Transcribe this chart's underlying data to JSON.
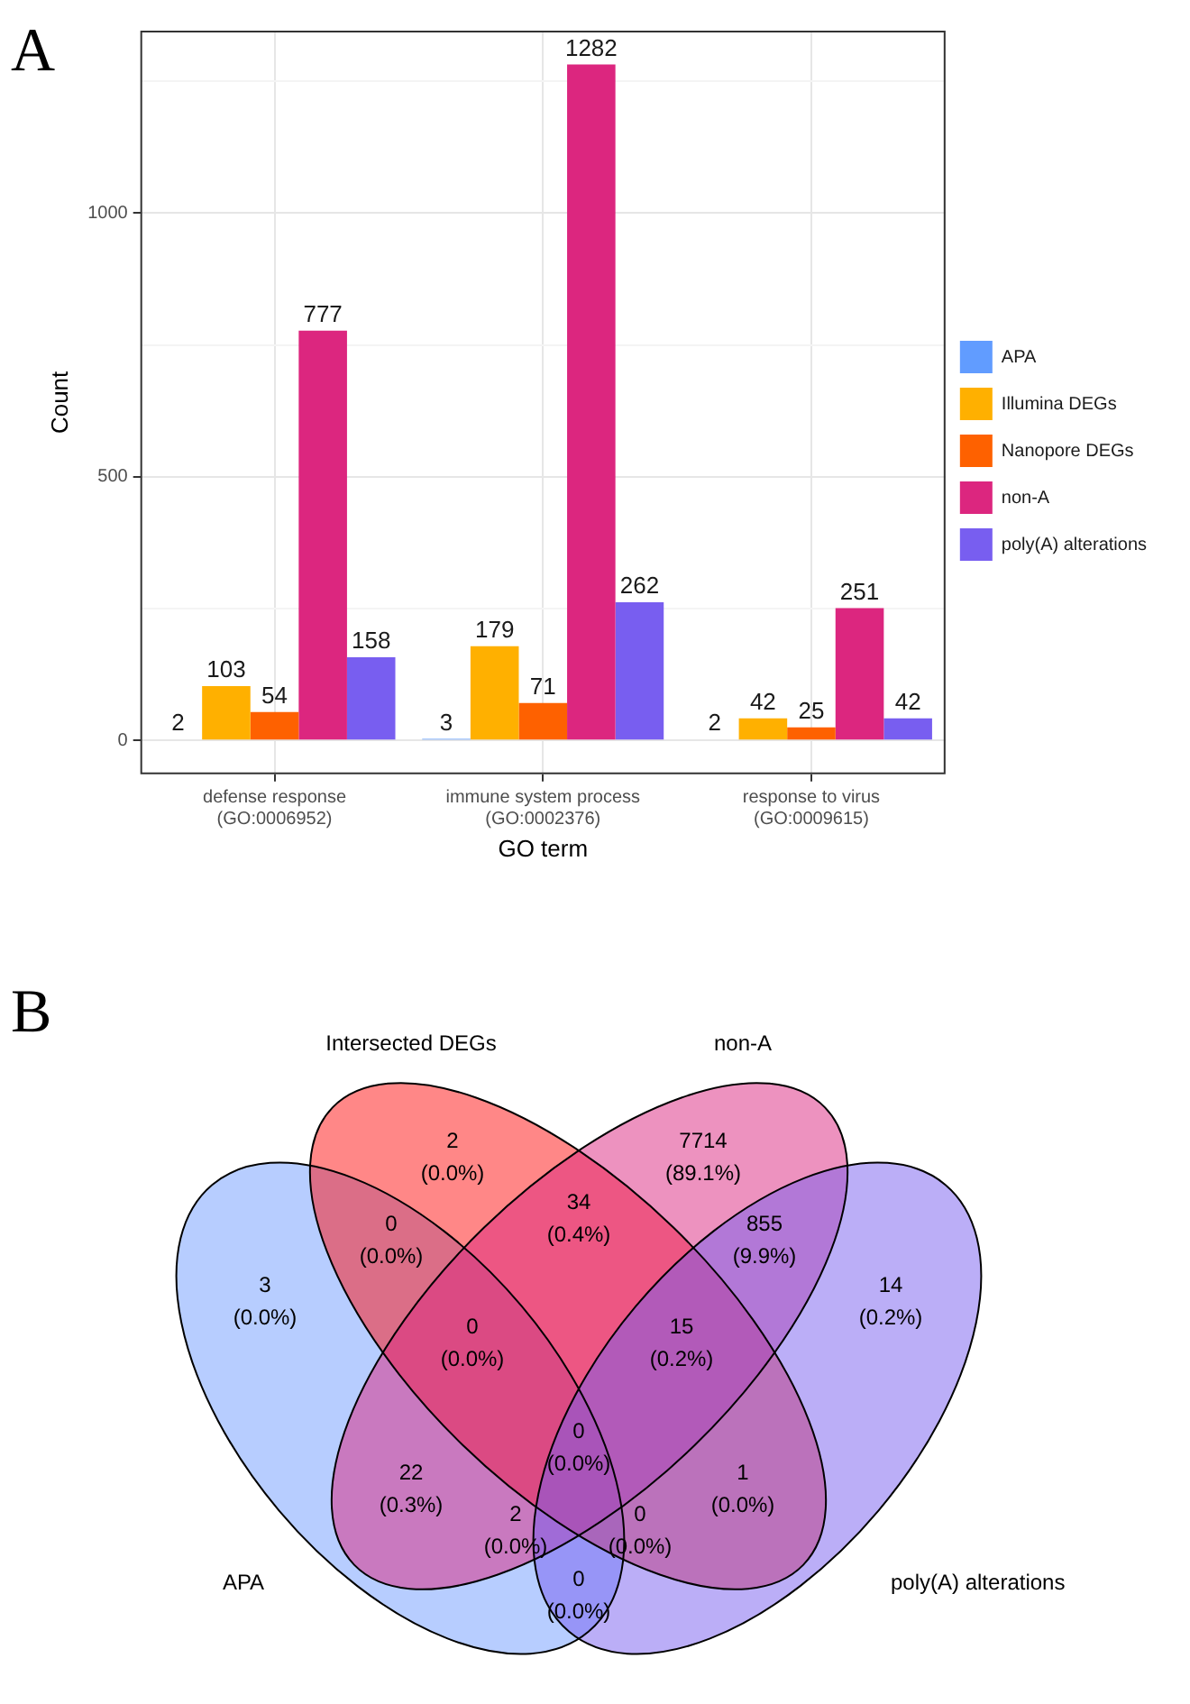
{
  "chart_data": [
    {
      "type": "bar",
      "title": "A",
      "xlabel": "GO term",
      "ylabel": "Count",
      "categories": [
        "defense response\n(GO:0006952)",
        "immune system process\n(GO:0002376)",
        "response to virus\n(GO:0009615)"
      ],
      "series": [
        {
          "name": "APA",
          "color": "#619cff",
          "values": [
            2,
            3,
            2
          ]
        },
        {
          "name": "Illumina DEGs",
          "color": "#ffb000",
          "values": [
            103,
            179,
            42
          ]
        },
        {
          "name": "Nanopore DEGs",
          "color": "#fe6100",
          "values": [
            54,
            71,
            25
          ]
        },
        {
          "name": "non-A",
          "color": "#dc267f",
          "values": [
            777,
            1282,
            251
          ]
        },
        {
          "name": "poly(A) alterations",
          "color": "#785ef0",
          "values": [
            158,
            262,
            42
          ]
        }
      ],
      "ylim": [
        -64,
        1346
      ],
      "yticks": [
        0,
        {
          "value": 250,
          "label": null
        },
        500,
        {
          "value": 750,
          "label": null
        },
        1000,
        {
          "value": 1250,
          "label": null
        }
      ],
      "grid": true,
      "legend": "right",
      "data_labels": true
    },
    {
      "type": "other",
      "title": "B",
      "categories": [
        "APA",
        "Intersected DEGs",
        "non-A",
        "poly(A) alterations"
      ],
      "annotations": [
        "3\n(0.0%)",
        "2\n(0.0%)",
        "0\n(0.0%)",
        "7714\n(89.1%)",
        "22\n(0.3%)",
        "34\n(0.4%)",
        "0\n(0.0%)",
        "14\n(0.2%)",
        "0\n(0.0%)",
        "1\n(0.0%)",
        "0\n(0.0%)",
        "855\n(9.9%)",
        "2\n(0.0%)",
        "15\n(0.2%)",
        "0\n(0.0%)"
      ]
    }
  ]
}
